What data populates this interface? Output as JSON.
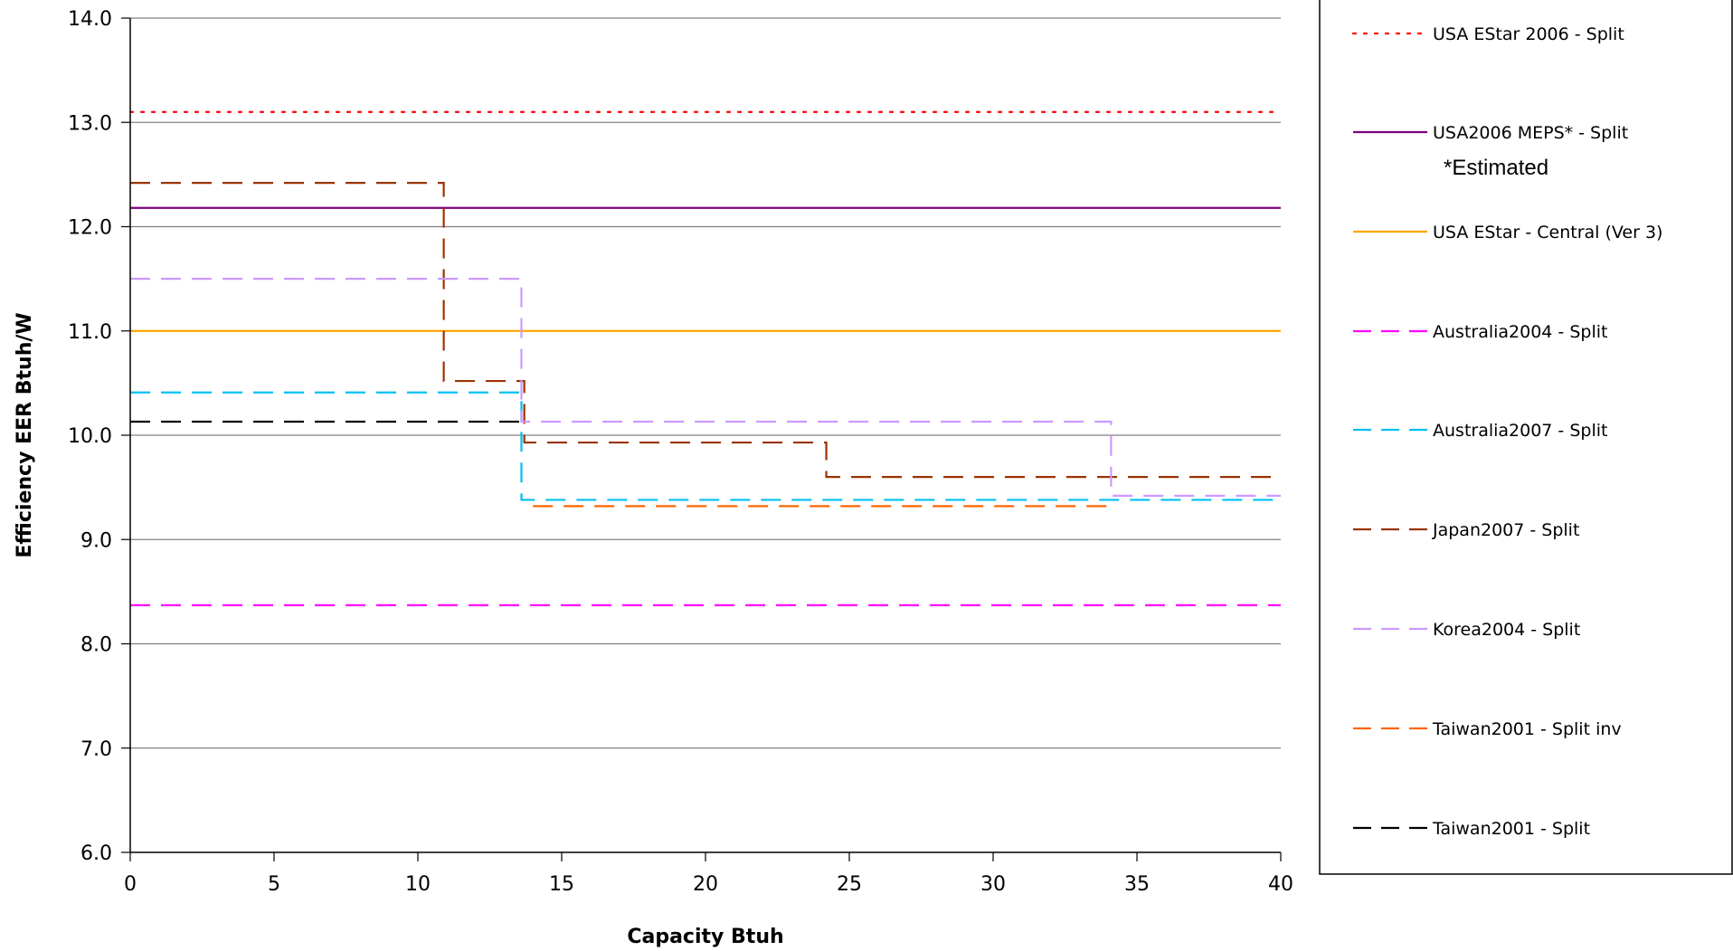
{
  "chart_data": {
    "type": "line",
    "title": "",
    "xlabel": "Capacity Btuh",
    "ylabel": "Efficiency EER Btuh/W",
    "xlim": [
      0,
      40
    ],
    "ylim": [
      6.0,
      14.0
    ],
    "x_ticks": [
      "0",
      "5",
      "10",
      "15",
      "20",
      "25",
      "30",
      "35",
      "40"
    ],
    "y_ticks": [
      "6.0",
      "7.0",
      "8.0",
      "9.0",
      "10.0",
      "11.0",
      "12.0",
      "13.0",
      "14.0"
    ],
    "grid": "horizontal",
    "legend_position": "right",
    "legend_note": "*Estimated",
    "series": [
      {
        "name": "USA EStar 2006 - Split",
        "color": "#ff0000",
        "style": "dotted",
        "steps": [
          {
            "x0": 0,
            "x1": 40,
            "y": 13.1
          }
        ]
      },
      {
        "name": "USA2006 MEPS* - Split",
        "color": "#800080",
        "style": "solid",
        "steps": [
          {
            "x0": 0,
            "x1": 40,
            "y": 12.18
          }
        ]
      },
      {
        "name": "USA EStar - Central (Ver 3)",
        "color": "#ffa500",
        "style": "solid",
        "steps": [
          {
            "x0": 0,
            "x1": 40,
            "y": 11.0
          }
        ]
      },
      {
        "name": "Australia2004 - Split",
        "color": "#ff00ff",
        "style": "dashed",
        "steps": [
          {
            "x0": 0,
            "x1": 40,
            "y": 8.37
          }
        ]
      },
      {
        "name": "Australia2007 - Split",
        "color": "#00c0f0",
        "style": "dashed",
        "steps": [
          {
            "x0": 0,
            "x1": 13.6,
            "y": 10.41
          },
          {
            "x0": 13.6,
            "x1": 40,
            "y": 9.38
          }
        ]
      },
      {
        "name": "Japan2007 - Split",
        "color": "#993300",
        "style": "dashed",
        "steps": [
          {
            "x0": 0,
            "x1": 10.9,
            "y": 12.42
          },
          {
            "x0": 10.9,
            "x1": 13.7,
            "y": 10.52
          },
          {
            "x0": 13.7,
            "x1": 24.2,
            "y": 9.93
          },
          {
            "x0": 24.2,
            "x1": 40,
            "y": 9.6
          }
        ]
      },
      {
        "name": "Korea2004 - Split",
        "color": "#cc99ff",
        "style": "dashed",
        "steps": [
          {
            "x0": 0,
            "x1": 13.6,
            "y": 11.5
          },
          {
            "x0": 13.6,
            "x1": 34.1,
            "y": 10.13
          },
          {
            "x0": 34.1,
            "x1": 40,
            "y": 9.42
          }
        ]
      },
      {
        "name": "Taiwan2001 - Split inv",
        "color": "#ff6600",
        "style": "dashed",
        "steps": [
          {
            "x0": 14.0,
            "x1": 34.1,
            "y": 9.32
          }
        ]
      },
      {
        "name": "Taiwan2001 - Split",
        "color": "#000000",
        "style": "dashed",
        "steps": [
          {
            "x0": 0,
            "x1": 13.6,
            "y": 10.13
          }
        ]
      }
    ]
  }
}
